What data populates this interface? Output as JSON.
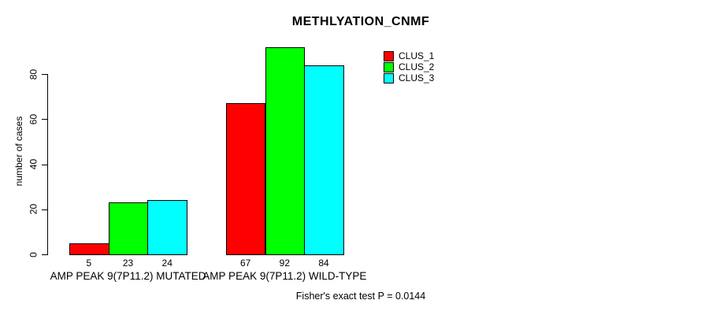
{
  "chart_data": {
    "type": "bar",
    "grouped": true,
    "title": "METHLYATION_CNMF",
    "subtitle": "Fisher's exact test P = 0.0144",
    "ylabel": "number of cases",
    "xlabel": "",
    "categories": [
      "AMP PEAK 9(7P11.2) MUTATED",
      "AMP PEAK 9(7P11.2) WILD-TYPE"
    ],
    "series": [
      {
        "name": "CLUS_1",
        "color": "#FF0000",
        "values": [
          5,
          67
        ]
      },
      {
        "name": "CLUS_2",
        "color": "#00FF00",
        "values": [
          23,
          92
        ]
      },
      {
        "name": "CLUS_3",
        "color": "#00FFFF",
        "values": [
          24,
          84
        ]
      }
    ],
    "bar_value_labels": [
      [
        5,
        23,
        24
      ],
      [
        67,
        92,
        84
      ]
    ],
    "yticks": [
      0,
      20,
      40,
      60,
      80
    ],
    "ylim": [
      0,
      93
    ],
    "grid": false,
    "legend_position": "top-right",
    "legend_entries": [
      "CLUS_1",
      "CLUS_2",
      "CLUS_3"
    ],
    "bar_border_color": "#000000",
    "background_color": "#FFFFFF",
    "text_color": "#000000"
  }
}
